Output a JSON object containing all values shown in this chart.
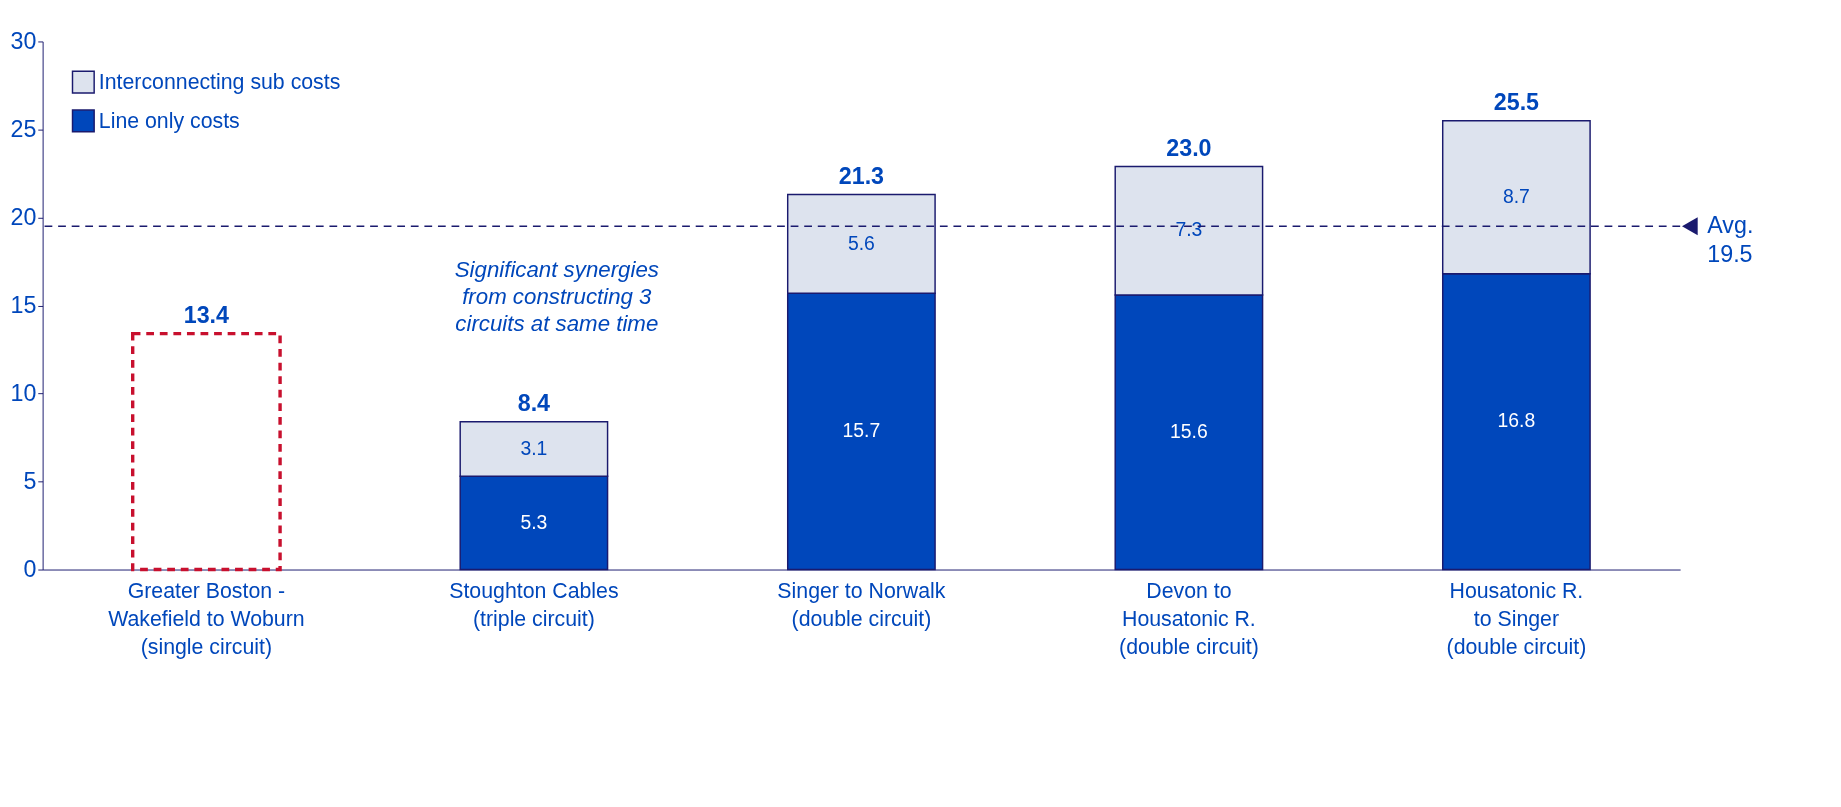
{
  "chart_data": {
    "type": "bar",
    "stacked": true,
    "categories": [
      "Greater Boston -\nWakefield to Woburn\n(single circuit)",
      "Stoughton Cables\n(triple circuit)",
      "Singer to Norwalk\n(double circuit)",
      "Devon to\nHousatonic R.\n(double circuit)",
      "Housatonic R.\nto Singer\n(double circuit)"
    ],
    "series": [
      {
        "color": "#c8102e",
        "line_style": "dashed",
        "values": [
          13.4,
          null,
          null,
          null,
          null
        ]
      },
      {
        "name": "Line only costs",
        "color": "#0047bb",
        "values": [
          null,
          5.3,
          15.7,
          15.6,
          16.8
        ],
        "value_labels": [
          null,
          "5.3",
          "15.7",
          "15.6",
          "16.8"
        ]
      },
      {
        "name": "Interconnecting sub costs",
        "color": "#dde3ee",
        "values": [
          null,
          3.1,
          5.6,
          7.3,
          8.7
        ],
        "value_labels": [
          null,
          "3.1",
          "5.6",
          "7.3",
          "8.7"
        ]
      }
    ],
    "totals": [
      "13.4",
      "8.4",
      "21.3",
      "23.0",
      "25.5"
    ],
    "ylim": [
      0,
      30
    ],
    "yticks": [
      0,
      5,
      10,
      15,
      20,
      25,
      30
    ],
    "grid": false,
    "legend": "top left",
    "ref_lines": [
      {
        "axis": "y",
        "value": 19.5,
        "label": "Avg. 19.5",
        "color": "#1a1a6e",
        "line_style": "dashed"
      }
    ],
    "annotations": [
      "Significant synergies from constructing 3 circuits at same time"
    ]
  }
}
